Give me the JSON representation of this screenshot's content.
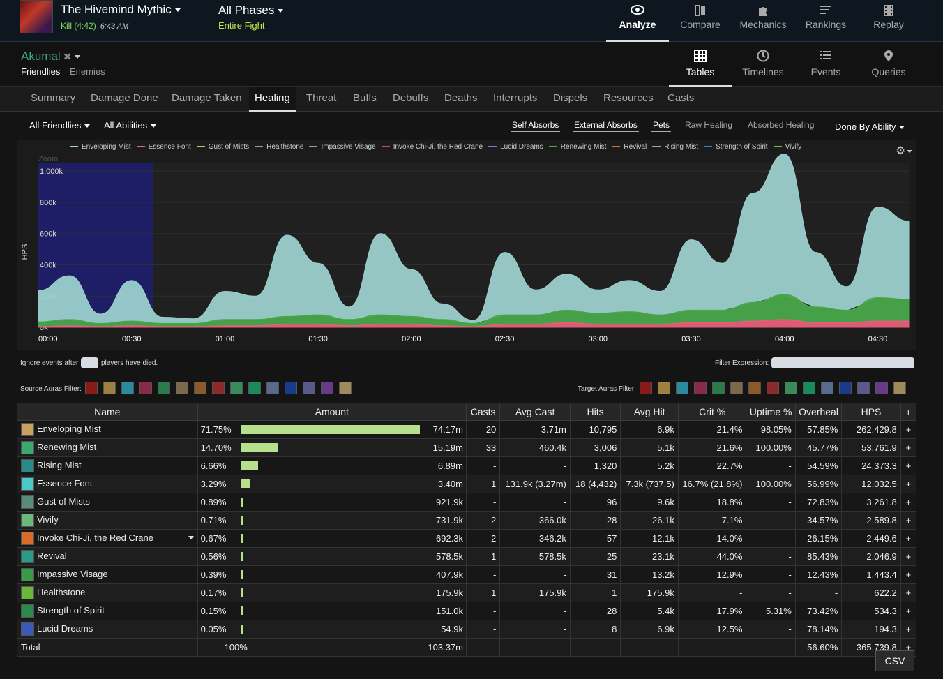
{
  "header": {
    "fight_title": "The Hivemind Mythic",
    "kill_text": "Kill (4:42)",
    "time_text": "6:43 AM",
    "phase_title": "All Phases",
    "phase_sub": "Entire Fight",
    "nav": [
      {
        "label": "Analyze",
        "icon": "eye-icon"
      },
      {
        "label": "Compare",
        "icon": "compare-icon"
      },
      {
        "label": "Mechanics",
        "icon": "puzzle-icon"
      },
      {
        "label": "Rankings",
        "icon": "rankings-icon"
      },
      {
        "label": "Replay",
        "icon": "film-icon"
      }
    ]
  },
  "subheader": {
    "player": "Akumal",
    "friendlies": "Friendlies",
    "enemies": "Enemies",
    "views": [
      {
        "label": "Tables",
        "icon": "grid-icon"
      },
      {
        "label": "Timelines",
        "icon": "clock-icon"
      },
      {
        "label": "Events",
        "icon": "list-icon"
      },
      {
        "label": "Queries",
        "icon": "pin-icon"
      }
    ]
  },
  "tabs": [
    "Summary",
    "Damage Done",
    "Damage Taken",
    "Healing",
    "Threat",
    "Buffs",
    "Debuffs",
    "Deaths",
    "Interrupts",
    "Dispels",
    "Resources",
    "Casts"
  ],
  "filters": {
    "friendlies": "All Friendlies",
    "abilities": "All Abilities",
    "toggles": [
      "Self Absorbs",
      "External Absorbs",
      "Pets",
      "Raw Healing",
      "Absorbed Healing"
    ],
    "done_by": "Done By Ability"
  },
  "legend": [
    {
      "name": "Enveloping Mist",
      "color": "#a6d8d8"
    },
    {
      "name": "Essence Font",
      "color": "#e86a6a"
    },
    {
      "name": "Gust of Mists",
      "color": "#9bd86a"
    },
    {
      "name": "Healthstone",
      "color": "#8aa0c8"
    },
    {
      "name": "Impassive Visage",
      "color": "#999999"
    },
    {
      "name": "Invoke Chi-Ji, the Red Crane",
      "color": "#e83a6a"
    },
    {
      "name": "Lucid Dreams",
      "color": "#9a6ad8"
    },
    {
      "name": "Renewing Mist",
      "color": "#4aa84a"
    },
    {
      "name": "Revival",
      "color": "#e86a4a"
    },
    {
      "name": "Rising Mist",
      "color": "#8aa8d8"
    },
    {
      "name": "Strength of Spirit",
      "color": "#2a8ad8"
    },
    {
      "name": "Vivify",
      "color": "#5ac84a"
    }
  ],
  "chart_data": {
    "type": "area",
    "zoom_label": "Zoom",
    "ylabel": "HPS",
    "yticks": [
      "0k",
      "200k",
      "400k",
      "600k",
      "800k",
      "1,000k"
    ],
    "xticks": [
      "00:00",
      "00:30",
      "01:00",
      "01:30",
      "02:00",
      "02:30",
      "03:00",
      "03:30",
      "04:00",
      "04:30"
    ],
    "ylim": [
      0,
      1050000
    ],
    "x_seconds": [
      0,
      10,
      20,
      30,
      40,
      50,
      60,
      70,
      80,
      90,
      100,
      110,
      120,
      130,
      140,
      150,
      160,
      170,
      180,
      190,
      200,
      210,
      220,
      230,
      240,
      250,
      260,
      270,
      280
    ],
    "series": [
      {
        "name": "Enveloping Mist",
        "values": [
          200000,
          280000,
          60000,
          260000,
          40000,
          30000,
          180000,
          150000,
          520000,
          330000,
          80000,
          520000,
          300000,
          100000,
          20000,
          400000,
          160000,
          230000,
          150000,
          200000,
          150000,
          450000,
          300000,
          700000,
          900000,
          350000,
          150000,
          580000,
          500000
        ]
      },
      {
        "name": "Renewing Mist",
        "values": [
          30000,
          40000,
          20000,
          30000,
          20000,
          20000,
          40000,
          40000,
          50000,
          60000,
          40000,
          60000,
          50000,
          40000,
          20000,
          60000,
          60000,
          80000,
          70000,
          80000,
          60000,
          80000,
          80000,
          120000,
          160000,
          100000,
          80000,
          150000,
          140000
        ]
      },
      {
        "name": "Essence Font",
        "values": [
          5000,
          10000,
          5000,
          10000,
          5000,
          5000,
          10000,
          10000,
          20000,
          20000,
          10000,
          20000,
          20000,
          10000,
          5000,
          20000,
          20000,
          30000,
          20000,
          20000,
          20000,
          30000,
          30000,
          40000,
          50000,
          30000,
          30000,
          40000,
          40000
        ]
      }
    ]
  },
  "footer_filters": {
    "ignore_prefix": "Ignore events after",
    "ignore_suffix": "players have died.",
    "filter_expression": "Filter Expression:",
    "source_auras": "Source Auras Filter:",
    "target_auras": "Target Auras Filter:"
  },
  "table": {
    "headers": [
      "Name",
      "Amount",
      "Casts",
      "Avg Cast",
      "Hits",
      "Avg Hit",
      "Crit %",
      "Uptime %",
      "Overheal",
      "HPS",
      "+"
    ],
    "rows": [
      {
        "name": "Enveloping Mist",
        "pct": "71.75%",
        "bar": 0.7175,
        "amount": "74.17m",
        "casts": "20",
        "avg_cast": "3.71m",
        "hits": "10,795",
        "avg_hit": "6.9k",
        "crit": "21.4%",
        "uptime": "98.05%",
        "overheal": "57.85%",
        "hps": "262,429.8",
        "icon": "#c8a060"
      },
      {
        "name": "Renewing Mist",
        "pct": "14.70%",
        "bar": 0.147,
        "amount": "15.19m",
        "casts": "33",
        "avg_cast": "460.4k",
        "hits": "3,006",
        "avg_hit": "5.1k",
        "crit": "21.6%",
        "uptime": "100.00%",
        "overheal": "45.77%",
        "hps": "53,761.9",
        "icon": "#3aa870"
      },
      {
        "name": "Rising Mist",
        "pct": "6.66%",
        "bar": 0.0666,
        "amount": "6.89m",
        "casts": "-",
        "avg_cast": "-",
        "hits": "1,320",
        "avg_hit": "5.2k",
        "crit": "22.7%",
        "uptime": "-",
        "overheal": "54.59%",
        "hps": "24,373.3",
        "icon": "#2a8a8a"
      },
      {
        "name": "Essence Font",
        "pct": "3.29%",
        "bar": 0.0329,
        "amount": "3.40m",
        "casts": "1",
        "avg_cast": "131.9k (3.27m)",
        "hits": "18 (4,432)",
        "avg_hit": "7.3k (737.5)",
        "crit": "16.7% (21.8%)",
        "uptime": "100.00%",
        "overheal": "56.99%",
        "hps": "12,032.5",
        "icon": "#4ac8c8"
      },
      {
        "name": "Gust of Mists",
        "pct": "0.89%",
        "bar": 0.0089,
        "amount": "921.9k",
        "casts": "-",
        "avg_cast": "-",
        "hits": "96",
        "avg_hit": "9.6k",
        "crit": "18.8%",
        "uptime": "-",
        "overheal": "72.83%",
        "hps": "3,261.8",
        "icon": "#5a8a7a"
      },
      {
        "name": "Vivify",
        "pct": "0.71%",
        "bar": 0.0071,
        "amount": "731.9k",
        "casts": "2",
        "avg_cast": "366.0k",
        "hits": "28",
        "avg_hit": "26.1k",
        "crit": "7.1%",
        "uptime": "-",
        "overheal": "34.57%",
        "hps": "2,589.8",
        "icon": "#6ab87a"
      },
      {
        "name": "Invoke Chi-Ji, the Red Crane",
        "pct": "0.67%",
        "bar": 0.0067,
        "amount": "692.3k",
        "casts": "2",
        "avg_cast": "346.2k",
        "hits": "57",
        "avg_hit": "12.1k",
        "crit": "14.0%",
        "uptime": "-",
        "overheal": "26.15%",
        "hps": "2,449.6",
        "icon": "#d86a2a"
      },
      {
        "name": "Revival",
        "pct": "0.56%",
        "bar": 0.0056,
        "amount": "578.5k",
        "casts": "1",
        "avg_cast": "578.5k",
        "hits": "25",
        "avg_hit": "23.1k",
        "crit": "44.0%",
        "uptime": "-",
        "overheal": "85.43%",
        "hps": "2,046.9",
        "icon": "#2a9a8a"
      },
      {
        "name": "Impassive Visage",
        "pct": "0.39%",
        "bar": 0.0039,
        "amount": "407.9k",
        "casts": "-",
        "avg_cast": "-",
        "hits": "31",
        "avg_hit": "13.2k",
        "crit": "12.9%",
        "uptime": "-",
        "overheal": "12.43%",
        "hps": "1,443.4",
        "icon": "#3a9a4a"
      },
      {
        "name": "Healthstone",
        "pct": "0.17%",
        "bar": 0.0017,
        "amount": "175.9k",
        "casts": "1",
        "avg_cast": "175.9k",
        "hits": "1",
        "avg_hit": "175.9k",
        "crit": "-",
        "uptime": "-",
        "overheal": "-",
        "hps": "622.2",
        "icon": "#6ab83a"
      },
      {
        "name": "Strength of Spirit",
        "pct": "0.15%",
        "bar": 0.0015,
        "amount": "151.0k",
        "casts": "-",
        "avg_cast": "-",
        "hits": "28",
        "avg_hit": "5.4k",
        "crit": "17.9%",
        "uptime": "5.31%",
        "overheal": "73.42%",
        "hps": "534.3",
        "icon": "#2a8a4a"
      },
      {
        "name": "Lucid Dreams",
        "pct": "0.05%",
        "bar": 0.0005,
        "amount": "54.9k",
        "casts": "-",
        "avg_cast": "-",
        "hits": "8",
        "avg_hit": "6.9k",
        "crit": "12.5%",
        "uptime": "-",
        "overheal": "78.14%",
        "hps": "194.3",
        "icon": "#3a5ab8"
      }
    ],
    "total": {
      "label": "Total",
      "pct": "100%",
      "amount": "103.37m",
      "overheal": "56.60%",
      "hps": "365,739.8"
    }
  },
  "csv_label": "CSV"
}
